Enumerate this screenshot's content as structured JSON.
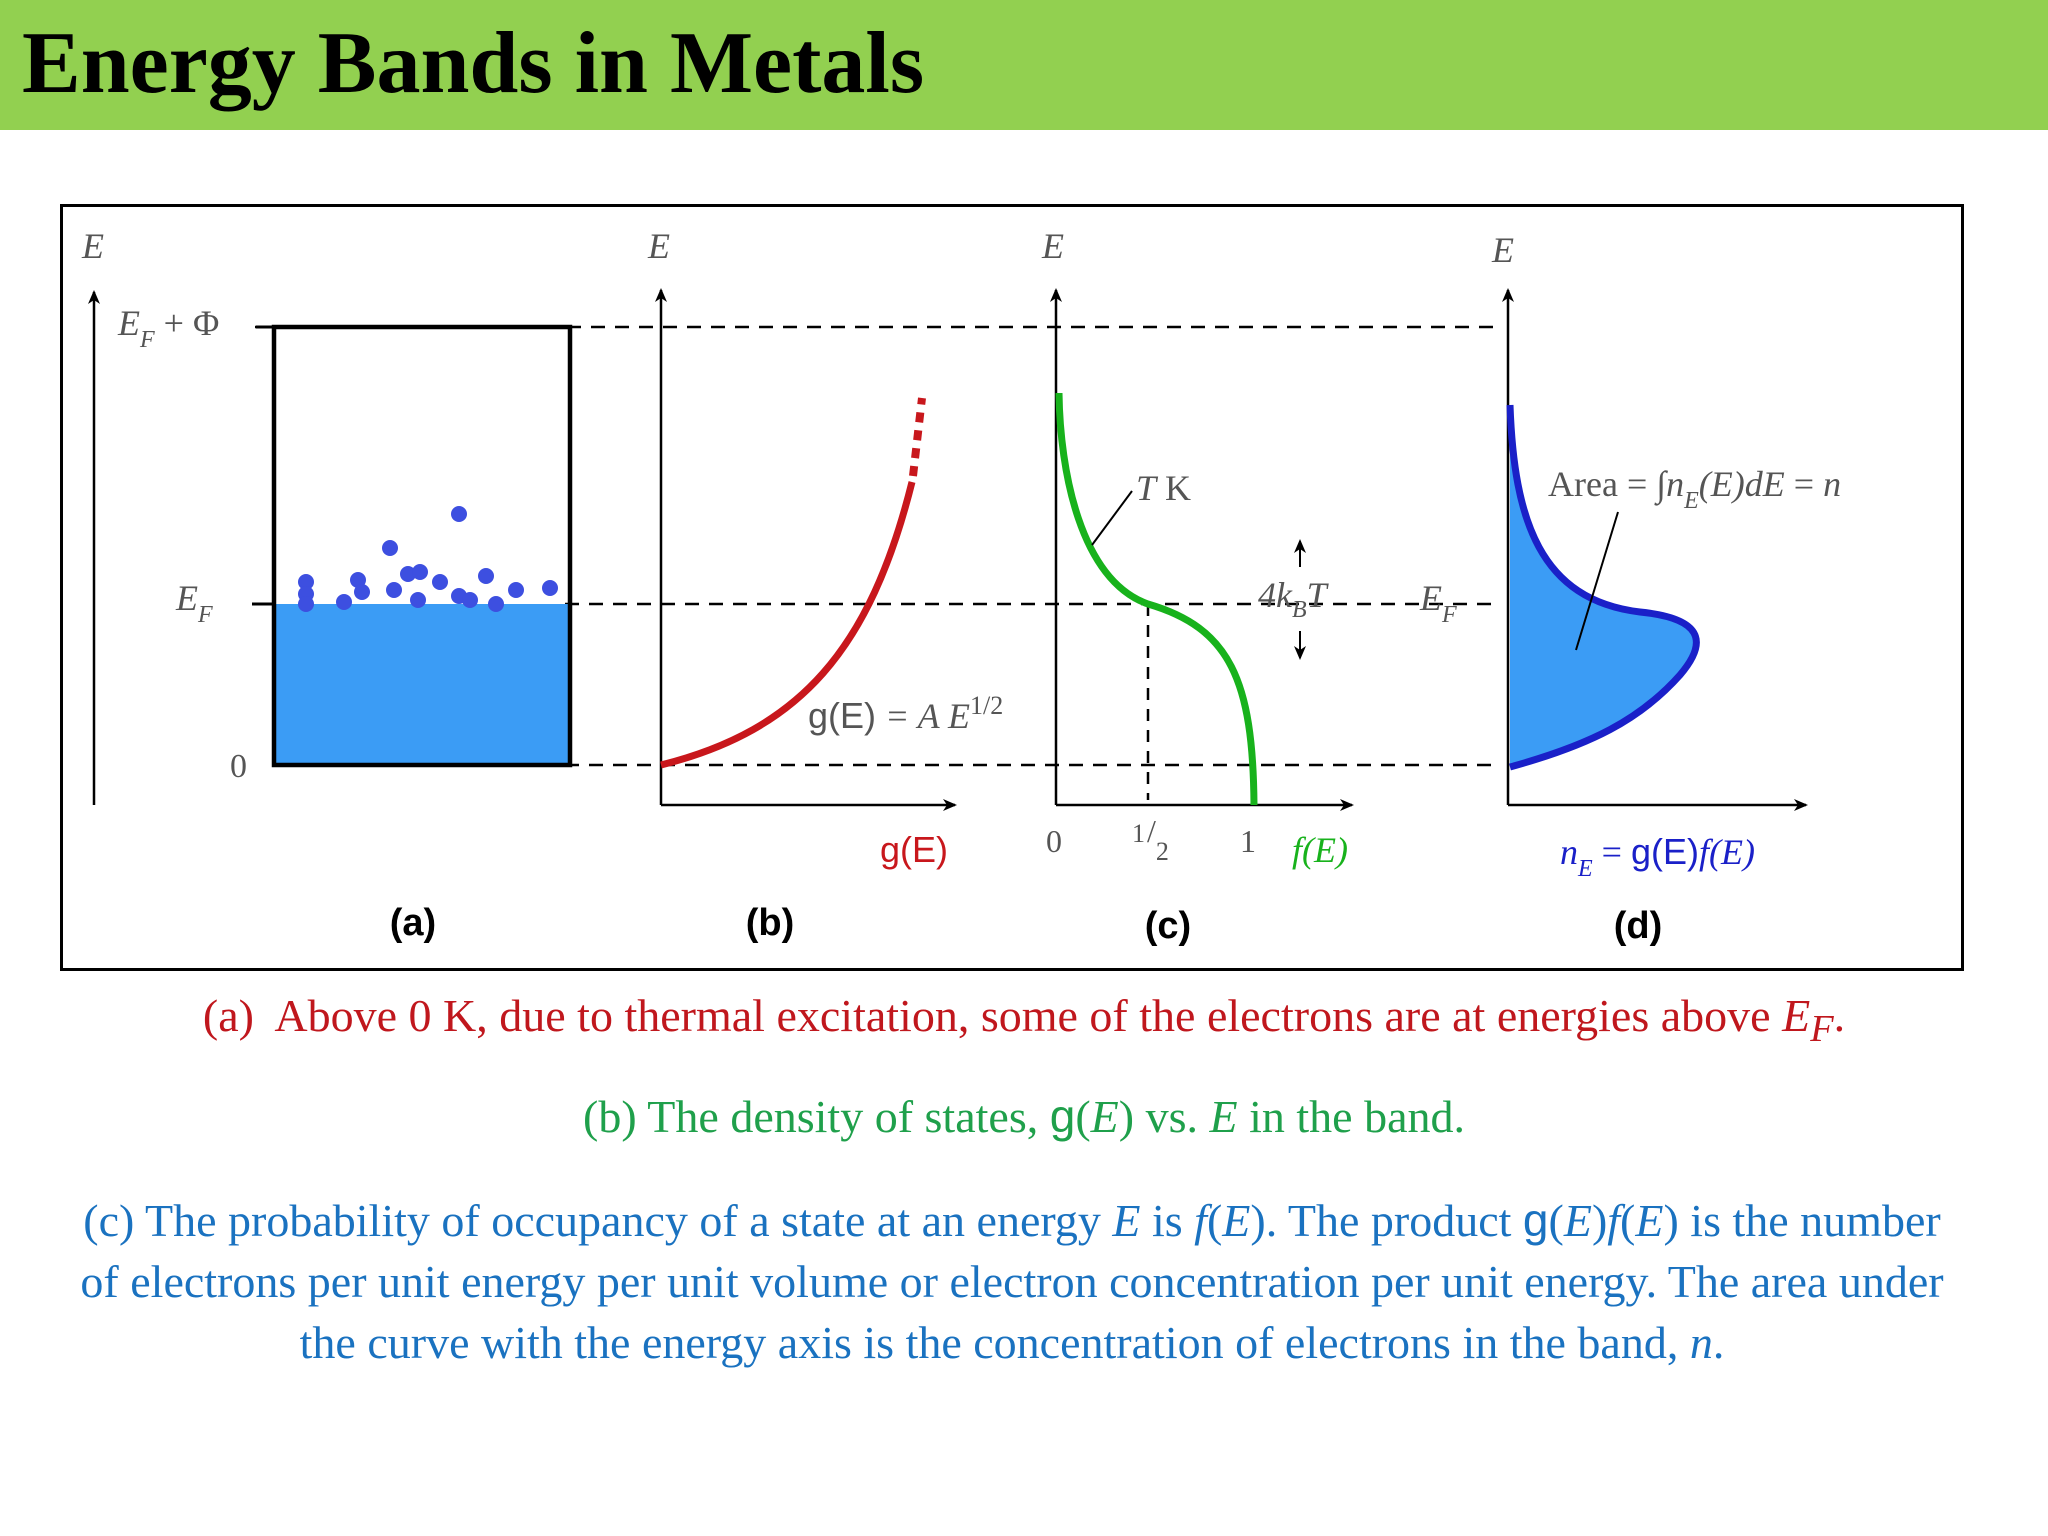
{
  "title": "Energy Bands in Metals",
  "colors": {
    "title_bar": "#92d050",
    "band_fill": "#3b9cf5",
    "electron": "#3d4fe0",
    "curve_b": "#c8171c",
    "curve_c": "#18b21c",
    "curve_d": "#1a20c8",
    "caption_a": "#c0171d",
    "caption_b": "#1fa04b",
    "caption_c": "#1a72c0"
  },
  "figure": {
    "panel_a": {
      "axis_label": "E",
      "level_top": "EF + Φ",
      "level_fermi": "EF",
      "level_zero": "0",
      "panel_label": "(a)"
    },
    "panel_b": {
      "axis_label": "E",
      "x_label": "g(E)",
      "formula": "g(E) = AE1/2",
      "panel_label": "(b)"
    },
    "panel_c": {
      "axis_label": "E",
      "x_tick_0": "0",
      "x_tick_half": "1/2",
      "x_tick_1": "1",
      "x_label": "f(E)",
      "temp_label": "TK",
      "spread_label": "4kBT",
      "fermi_label": "EF",
      "panel_label": "(c)"
    },
    "panel_d": {
      "axis_label": "E",
      "area_label": "Area = ∫nE(E)dE = n",
      "x_label": "nE = g(E)f(E)",
      "panel_label": "(d)"
    }
  },
  "captions": {
    "a": "(a) Above 0 K, due to thermal excitation, some of the electrons are at energies above EF.",
    "b": "(b) The density of states, g(E) vs. E in the band.",
    "c": "(c) The probability of occupancy of a state at an energy E is f(E). The product g(E)f(E) is the number of electrons per unit energy per unit volume or electron concentration per unit energy. The area under the curve with the energy axis is the concentration of electrons in the band, n."
  }
}
